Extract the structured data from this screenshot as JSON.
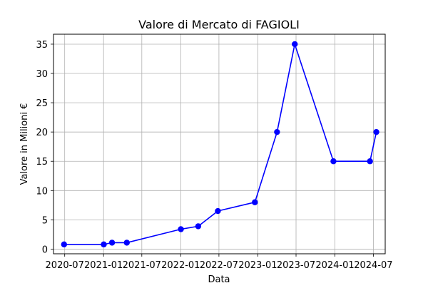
{
  "chart_data": {
    "type": "line",
    "title": "Valore di Mercato di FAGIOLI",
    "xlabel": "Data",
    "ylabel": "Valore in Milioni €",
    "grid": true,
    "line_color": "#0000ff",
    "x_ticks": [
      "2020-07",
      "2021-01",
      "2021-07",
      "2022-01",
      "2022-07",
      "2023-01",
      "2023-07",
      "2024-01",
      "2024-07"
    ],
    "y_ticks": [
      0,
      5,
      10,
      15,
      20,
      25,
      30,
      35
    ],
    "xlim": [
      "2020-05-09",
      "2024-08-26"
    ],
    "ylim": [
      -0.8,
      36.7
    ],
    "series": [
      {
        "x": [
          "2020-06-28",
          "2021-01-02",
          "2021-02-10",
          "2021-04-21",
          "2022-01-02",
          "2022-03-25",
          "2022-06-26",
          "2022-12-18",
          "2023-04-02",
          "2023-06-25",
          "2023-12-25",
          "2024-06-15",
          "2024-07-15"
        ],
        "y": [
          0.8,
          0.8,
          1.1,
          1.1,
          3.4,
          3.9,
          6.5,
          8,
          20,
          35,
          15,
          15,
          20
        ]
      }
    ]
  }
}
